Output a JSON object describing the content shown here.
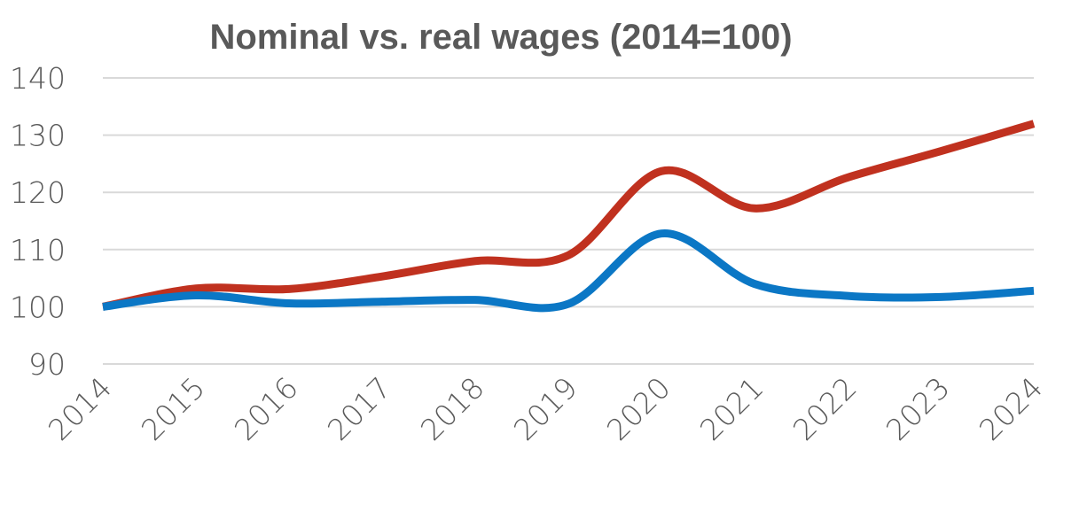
{
  "chart_data": {
    "type": "line",
    "title": "Nominal vs. real  wages (2014=100)",
    "xlabel": "",
    "ylabel": "",
    "categories": [
      "2014",
      "2015",
      "2016",
      "2017",
      "2018",
      "2019",
      "2020",
      "2021",
      "2022",
      "2023",
      "2024"
    ],
    "ylim": [
      90,
      140
    ],
    "yticks": [
      90,
      100,
      110,
      120,
      130,
      140
    ],
    "grid": true,
    "legend": "none",
    "smooth": true,
    "series": [
      {
        "color": "#C0311F",
        "values": [
          100,
          103.2,
          103.1,
          105.3,
          108.0,
          109.0,
          123.7,
          117.2,
          122.6,
          127.2,
          132.0
        ]
      },
      {
        "color": "#0B77C5",
        "values": [
          100,
          102.0,
          100.6,
          100.9,
          101.2,
          100.5,
          112.8,
          104.0,
          101.9,
          101.7,
          102.8
        ]
      }
    ]
  }
}
